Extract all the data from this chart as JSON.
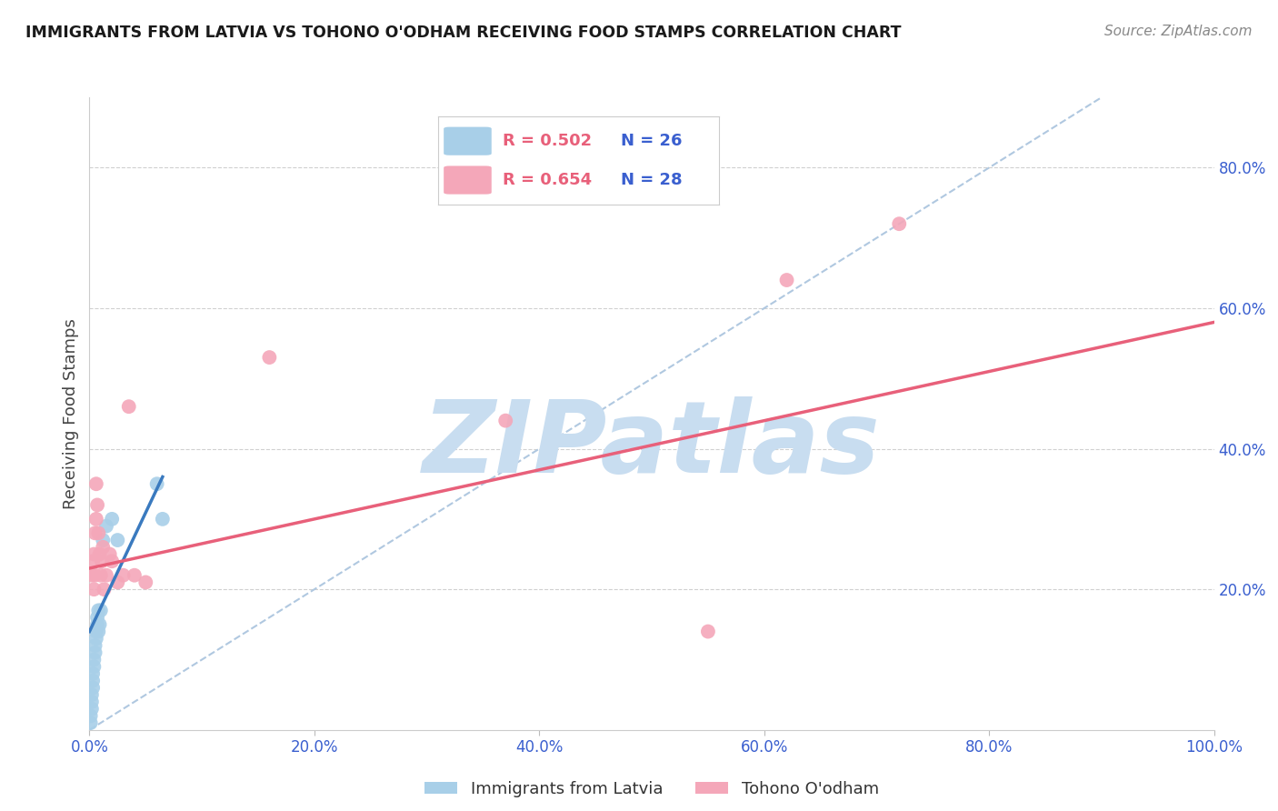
{
  "title": "IMMIGRANTS FROM LATVIA VS TOHONO O'ODHAM RECEIVING FOOD STAMPS CORRELATION CHART",
  "source": "Source: ZipAtlas.com",
  "ylabel": "Receiving Food Stamps",
  "xlim": [
    0.0,
    1.0
  ],
  "ylim": [
    0.0,
    0.9
  ],
  "xticks": [
    0.0,
    0.2,
    0.4,
    0.6,
    0.8,
    1.0
  ],
  "yticks": [
    0.2,
    0.4,
    0.6,
    0.8
  ],
  "xtick_labels": [
    "0.0%",
    "20.0%",
    "40.0%",
    "60.0%",
    "80.0%",
    "100.0%"
  ],
  "ytick_labels": [
    "20.0%",
    "40.0%",
    "60.0%",
    "80.0%"
  ],
  "legend_blue_r": "R = 0.502",
  "legend_blue_n": "N = 26",
  "legend_pink_r": "R = 0.654",
  "legend_pink_n": "N = 28",
  "blue_color": "#a8cfe8",
  "pink_color": "#f4a7b9",
  "blue_line_color": "#3a7abf",
  "pink_line_color": "#e8607a",
  "dashed_line_color": "#b0c8e0",
  "watermark_color": "#c8ddf0",
  "title_color": "#1a1a1a",
  "ylabel_color": "#444444",
  "tick_label_color": "#3a5fcf",
  "grid_color": "#d0d0d0",
  "legend_r_color": "#e8607a",
  "legend_n_color": "#3a5fcf",
  "source_color": "#888888",
  "background_color": "#ffffff",
  "blue_scatter_x": [
    0.001,
    0.001,
    0.002,
    0.002,
    0.002,
    0.003,
    0.003,
    0.003,
    0.004,
    0.004,
    0.005,
    0.005,
    0.006,
    0.006,
    0.007,
    0.007,
    0.008,
    0.008,
    0.009,
    0.01,
    0.012,
    0.015,
    0.02,
    0.025,
    0.06,
    0.065
  ],
  "blue_scatter_y": [
    0.01,
    0.02,
    0.03,
    0.04,
    0.05,
    0.06,
    0.07,
    0.08,
    0.09,
    0.1,
    0.11,
    0.12,
    0.13,
    0.14,
    0.15,
    0.16,
    0.17,
    0.14,
    0.15,
    0.17,
    0.27,
    0.29,
    0.3,
    0.27,
    0.35,
    0.3
  ],
  "pink_scatter_x": [
    0.002,
    0.003,
    0.004,
    0.004,
    0.005,
    0.005,
    0.006,
    0.006,
    0.007,
    0.008,
    0.009,
    0.01,
    0.011,
    0.012,
    0.013,
    0.015,
    0.018,
    0.02,
    0.025,
    0.03,
    0.035,
    0.04,
    0.05,
    0.16,
    0.37,
    0.55,
    0.62,
    0.72
  ],
  "pink_scatter_y": [
    0.22,
    0.24,
    0.2,
    0.25,
    0.22,
    0.28,
    0.3,
    0.35,
    0.32,
    0.28,
    0.25,
    0.22,
    0.24,
    0.26,
    0.2,
    0.22,
    0.25,
    0.24,
    0.21,
    0.22,
    0.46,
    0.22,
    0.21,
    0.53,
    0.44,
    0.14,
    0.64,
    0.72
  ],
  "blue_line_x": [
    0.0,
    0.065
  ],
  "blue_line_y": [
    0.14,
    0.36
  ],
  "pink_line_x": [
    0.0,
    1.0
  ],
  "pink_line_y": [
    0.23,
    0.58
  ],
  "dashed_line_x": [
    0.0,
    0.9
  ],
  "dashed_line_y": [
    0.0,
    0.9
  ],
  "bottom_legend_labels": [
    "Immigrants from Latvia",
    "Tohono O'odham"
  ]
}
